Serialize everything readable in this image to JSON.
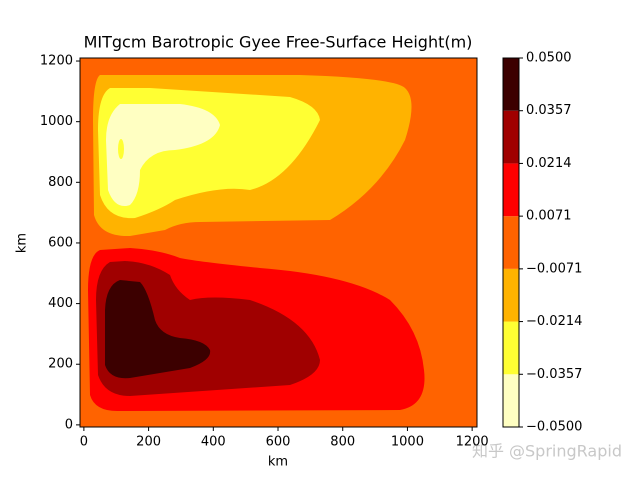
{
  "chart_data": {
    "type": "contourf",
    "title": "MITgcm Barotropic Gyee Free-Surface Height(m)",
    "xlabel": "km",
    "ylabel": "km",
    "xlim": [
      -12,
      1215
    ],
    "ylim": [
      -7,
      1210
    ],
    "xticks": [
      0,
      200,
      400,
      600,
      800,
      1000,
      1200
    ],
    "yticks": [
      0,
      200,
      400,
      600,
      800,
      1000,
      1200
    ],
    "levels": [
      {
        "value": -0.05,
        "label": "−0.0500"
      },
      {
        "value": -0.0357,
        "label": "−0.0357"
      },
      {
        "value": -0.0214,
        "label": "−0.0214"
      },
      {
        "value": -0.0071,
        "label": "−0.0071"
      },
      0.0071,
      0.0214,
      0.0357,
      {
        "value": 0.05,
        "label": "0.0500"
      }
    ],
    "colors": [
      "#ffffc2",
      "#ffff33",
      "#ffb300",
      "#ff6300",
      "#ff0000",
      "#a00000",
      "#3c0000"
    ],
    "watermark": "知乎 @SpringRapid"
  }
}
